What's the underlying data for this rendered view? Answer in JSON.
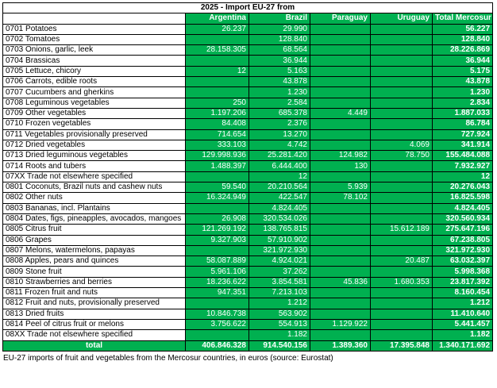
{
  "header": {
    "title": "2025  -  Import EU-27 from"
  },
  "columns": [
    "Argentina",
    "Brazil",
    "Paraguay",
    "Uruguay",
    "Total Mercosur"
  ],
  "rows": [
    {
      "label": "0701 Potatoes",
      "values": [
        "26.237",
        "29.990",
        null,
        null,
        "56.227"
      ]
    },
    {
      "label": "0702 Tomatoes",
      "values": [
        null,
        "128.840",
        null,
        null,
        "128.840"
      ]
    },
    {
      "label": "0703 Onions, garlic, leek",
      "values": [
        "28.158.305",
        "68.564",
        null,
        null,
        "28.226.869"
      ]
    },
    {
      "label": "0704 Brassicas",
      "values": [
        null,
        "36.944",
        null,
        null,
        "36.944"
      ]
    },
    {
      "label": "0705 Lettuce, chicory",
      "values": [
        "12",
        "5.163",
        null,
        null,
        "5.175"
      ]
    },
    {
      "label": "0706 Carrots, edible roots",
      "values": [
        null,
        "43.878",
        null,
        null,
        "43.878"
      ]
    },
    {
      "label": "0707 Cucumbers and gherkins",
      "values": [
        null,
        "1.230",
        null,
        null,
        "1.230"
      ]
    },
    {
      "label": "0708 Leguminous vegetables",
      "values": [
        "250",
        "2.584",
        null,
        null,
        "2.834"
      ]
    },
    {
      "label": "0709 Other vegetables",
      "values": [
        "1.197.206",
        "685.378",
        "4.449",
        null,
        "1.887.033"
      ]
    },
    {
      "label": "0710 Frozen vegetables",
      "values": [
        "84.408",
        "2.376",
        null,
        null,
        "86.784"
      ]
    },
    {
      "label": "0711 Vegetables provisionally preserved",
      "values": [
        "714.654",
        "13.270",
        null,
        null,
        "727.924"
      ]
    },
    {
      "label": "0712 Dried vegetables",
      "values": [
        "333.103",
        "4.742",
        null,
        "4.069",
        "341.914"
      ]
    },
    {
      "label": "0713 Dried leguminous vegetables",
      "values": [
        "129.998.936",
        "25.281.420",
        "124.982",
        "78.750",
        "155.484.088"
      ]
    },
    {
      "label": "0714 Roots and tubers",
      "values": [
        "1.488.397",
        "6.444.400",
        "130",
        null,
        "7.932.927"
      ]
    },
    {
      "label": "07XX Trade not elsewhere specified",
      "values": [
        null,
        "12",
        null,
        null,
        "12"
      ]
    },
    {
      "label": "0801 Coconuts, Brazil nuts and cashew nuts",
      "values": [
        "59.540",
        "20.210.564",
        "5.939",
        null,
        "20.276.043"
      ]
    },
    {
      "label": "0802 Other nuts",
      "values": [
        "16.324.949",
        "422.547",
        "78.102",
        null,
        "16.825.598"
      ]
    },
    {
      "label": "0803 Bananas, incl. Plantains",
      "values": [
        null,
        "4.824.405",
        null,
        null,
        "4.824.405"
      ]
    },
    {
      "label": "0804 Dates, figs, pineapples, avocados, mangoes",
      "values": [
        "26.908",
        "320.534.026",
        null,
        null,
        "320.560.934"
      ]
    },
    {
      "label": "0805 Citrus fruit",
      "values": [
        "121.269.192",
        "138.765.815",
        null,
        "15.612.189",
        "275.647.196"
      ]
    },
    {
      "label": "0806 Grapes",
      "values": [
        "9.327.903",
        "57.910.902",
        null,
        null,
        "67.238.805"
      ]
    },
    {
      "label": "0807 Melons, watermelons, papayas",
      "values": [
        null,
        "321.972.930",
        null,
        null,
        "321.972.930"
      ]
    },
    {
      "label": "0808 Apples, pears and quinces",
      "values": [
        "58.087.889",
        "4.924.021",
        null,
        "20.487",
        "63.032.397"
      ]
    },
    {
      "label": "0809 Stone fruit",
      "values": [
        "5.961.106",
        "37.262",
        null,
        null,
        "5.998.368"
      ]
    },
    {
      "label": "0810 Strawberries and berries",
      "values": [
        "18.236.622",
        "3.854.581",
        "45.836",
        "1.680.353",
        "23.817.392"
      ]
    },
    {
      "label": "0811 Frozen fruit and nuts",
      "values": [
        "947.351",
        "7.213.103",
        null,
        null,
        "8.160.454"
      ]
    },
    {
      "label": "0812 Fruit and nuts, provisionally preserved",
      "values": [
        null,
        "1.212",
        null,
        null,
        "1.212"
      ]
    },
    {
      "label": "0813 Dried fruits",
      "values": [
        "10.846.738",
        "563.902",
        null,
        null,
        "11.410.640"
      ]
    },
    {
      "label": "0814 Peel of citrus fruit or melons",
      "values": [
        "3.756.622",
        "554.913",
        "1.129.922",
        null,
        "5.441.457"
      ]
    },
    {
      "label": "08XX Trade not elsewhere specified",
      "values": [
        null,
        "1.182",
        null,
        null,
        "1.182"
      ]
    }
  ],
  "total": {
    "label": "total",
    "values": [
      "406.846.328",
      "914.540.156",
      "1.389.360",
      "17.395.848",
      "1.340.171.692"
    ]
  },
  "footer": "EU-27 imports of fruit and vegetables from the Mercosur countries, in euros (source: Eurostat)"
}
